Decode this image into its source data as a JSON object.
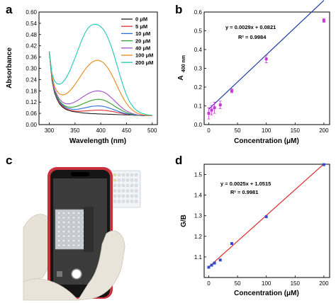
{
  "panels": {
    "a": "a",
    "b": "b",
    "c": "c",
    "d": "d"
  },
  "chart_data": [
    {
      "id": "a",
      "type": "line",
      "xlabel": "Wavelength (nm)",
      "ylabel": "Absorbance",
      "xlim": [
        280,
        510
      ],
      "ylim": [
        0,
        0.6
      ],
      "xticks": [
        "300",
        "350",
        "400",
        "450",
        "500"
      ],
      "yticks": [
        "0.00",
        "0.06",
        "0.12",
        "0.18",
        "0.24",
        "0.30",
        "0.36",
        "0.42",
        "0.48",
        "0.54",
        "0.60"
      ],
      "legend_position": "top-right",
      "x": [
        300,
        305,
        310,
        315,
        320,
        325,
        330,
        335,
        340,
        345,
        350,
        355,
        360,
        365,
        370,
        375,
        380,
        385,
        390,
        395,
        400,
        405,
        410,
        415,
        420,
        425,
        430,
        435,
        440,
        445,
        450,
        455,
        460,
        465,
        470,
        475,
        480,
        485,
        490,
        495,
        500
      ],
      "series": [
        {
          "name": "0 μM",
          "color": "#222222",
          "values": [
            0.39,
            0.24,
            0.17,
            0.135,
            0.11,
            0.095,
            0.085,
            0.078,
            0.074,
            0.07,
            0.068,
            0.066,
            0.064,
            0.062,
            0.061,
            0.06,
            0.059,
            0.058,
            0.058,
            0.057,
            0.057,
            0.056,
            0.056,
            0.055,
            0.055,
            0.054,
            0.054,
            0.053,
            0.053,
            0.052,
            0.052,
            0.051,
            0.051,
            0.05,
            0.05,
            0.049,
            0.049,
            0.048,
            0.048,
            0.047,
            0.047
          ]
        },
        {
          "name": "5 μM",
          "color": "#e03030",
          "values": [
            0.39,
            0.245,
            0.175,
            0.14,
            0.115,
            0.1,
            0.09,
            0.082,
            0.077,
            0.074,
            0.072,
            0.071,
            0.071,
            0.072,
            0.073,
            0.074,
            0.075,
            0.076,
            0.077,
            0.077,
            0.077,
            0.076,
            0.075,
            0.073,
            0.071,
            0.069,
            0.066,
            0.063,
            0.061,
            0.058,
            0.056,
            0.054,
            0.052,
            0.051,
            0.05,
            0.049,
            0.048,
            0.048,
            0.047,
            0.047,
            0.047
          ]
        },
        {
          "name": "10 μM",
          "color": "#2a6de0",
          "values": [
            0.39,
            0.248,
            0.18,
            0.145,
            0.12,
            0.105,
            0.095,
            0.088,
            0.084,
            0.082,
            0.081,
            0.082,
            0.084,
            0.087,
            0.09,
            0.093,
            0.096,
            0.098,
            0.099,
            0.1,
            0.099,
            0.097,
            0.094,
            0.09,
            0.085,
            0.08,
            0.075,
            0.07,
            0.065,
            0.061,
            0.058,
            0.055,
            0.053,
            0.051,
            0.05,
            0.049,
            0.048,
            0.048,
            0.047,
            0.047,
            0.047
          ]
        },
        {
          "name": "20 μM",
          "color": "#33a02c",
          "values": [
            0.39,
            0.25,
            0.185,
            0.15,
            0.125,
            0.11,
            0.1,
            0.095,
            0.093,
            0.093,
            0.095,
            0.099,
            0.104,
            0.11,
            0.116,
            0.122,
            0.127,
            0.131,
            0.134,
            0.135,
            0.134,
            0.131,
            0.126,
            0.119,
            0.111,
            0.102,
            0.093,
            0.085,
            0.077,
            0.07,
            0.064,
            0.059,
            0.056,
            0.053,
            0.051,
            0.05,
            0.049,
            0.048,
            0.047,
            0.047,
            0.047
          ]
        },
        {
          "name": "40 μM",
          "color": "#a14fc9",
          "values": [
            0.39,
            0.255,
            0.19,
            0.158,
            0.135,
            0.121,
            0.113,
            0.11,
            0.111,
            0.115,
            0.121,
            0.129,
            0.138,
            0.147,
            0.156,
            0.164,
            0.171,
            0.176,
            0.179,
            0.18,
            0.178,
            0.174,
            0.167,
            0.157,
            0.145,
            0.132,
            0.118,
            0.105,
            0.093,
            0.082,
            0.073,
            0.066,
            0.06,
            0.056,
            0.053,
            0.051,
            0.05,
            0.049,
            0.048,
            0.047,
            0.047
          ]
        },
        {
          "name": "100 μM",
          "color": "#e8891a",
          "values": [
            0.39,
            0.262,
            0.205,
            0.178,
            0.163,
            0.158,
            0.16,
            0.168,
            0.18,
            0.196,
            0.214,
            0.234,
            0.255,
            0.276,
            0.295,
            0.312,
            0.326,
            0.336,
            0.342,
            0.343,
            0.339,
            0.33,
            0.316,
            0.297,
            0.273,
            0.246,
            0.217,
            0.188,
            0.16,
            0.135,
            0.113,
            0.095,
            0.081,
            0.07,
            0.062,
            0.057,
            0.053,
            0.051,
            0.049,
            0.048,
            0.047
          ]
        },
        {
          "name": "200 μM",
          "color": "#1ec9b7",
          "values": [
            0.39,
            0.275,
            0.232,
            0.218,
            0.215,
            0.222,
            0.238,
            0.26,
            0.288,
            0.321,
            0.356,
            0.392,
            0.428,
            0.462,
            0.491,
            0.513,
            0.527,
            0.534,
            0.535,
            0.531,
            0.522,
            0.507,
            0.485,
            0.456,
            0.42,
            0.378,
            0.332,
            0.285,
            0.238,
            0.195,
            0.158,
            0.128,
            0.105,
            0.088,
            0.075,
            0.066,
            0.06,
            0.056,
            0.053,
            0.051,
            0.05
          ]
        }
      ]
    },
    {
      "id": "b",
      "type": "scatter",
      "xlabel": "Concentration (μM)",
      "ylabel_main": "A",
      "ylabel_sub": "400 nm",
      "xlim": [
        -8,
        210
      ],
      "ylim": [
        0,
        0.6
      ],
      "xticks": [
        "0",
        "50",
        "100",
        "150",
        "200"
      ],
      "yticks": [
        "0.0",
        "0.1",
        "0.2",
        "0.3",
        "0.4",
        "0.5",
        "0.6"
      ],
      "equation": "y = 0.0029x + 0.0821",
      "r2": "R² = 0.9984",
      "fit": {
        "slope": 0.0029,
        "intercept": 0.0821,
        "color": "#1f3fa6"
      },
      "points": [
        {
          "x": 0,
          "y": 0.06,
          "err": 0.03
        },
        {
          "x": 5,
          "y": 0.077,
          "err": 0.025
        },
        {
          "x": 10,
          "y": 0.09,
          "err": 0.03
        },
        {
          "x": 20,
          "y": 0.105,
          "err": 0.02
        },
        {
          "x": 40,
          "y": 0.18,
          "err": 0.01
        },
        {
          "x": 100,
          "y": 0.35,
          "err": 0.02
        },
        {
          "x": 200,
          "y": 0.555,
          "err": 0.01
        }
      ],
      "point_color": "#c63ad1"
    },
    {
      "id": "d",
      "type": "scatter",
      "xlabel": "Concentration (μM)",
      "ylabel": "G/B",
      "xlim": [
        -8,
        210
      ],
      "ylim": [
        1.0,
        1.55
      ],
      "xticks": [
        "0",
        "50",
        "100",
        "150",
        "200"
      ],
      "yticks": [
        "1.1",
        "1.2",
        "1.3",
        "1.4",
        "1.5"
      ],
      "equation": "y = 0.0025x + 1.0515",
      "r2": "R² = 0.9981",
      "fit": {
        "slope": 0.0025,
        "intercept": 1.0515,
        "color": "#e02a2a"
      },
      "points": [
        {
          "x": 0,
          "y": 1.05
        },
        {
          "x": 5,
          "y": 1.06
        },
        {
          "x": 10,
          "y": 1.07
        },
        {
          "x": 20,
          "y": 1.085
        },
        {
          "x": 40,
          "y": 1.165
        },
        {
          "x": 100,
          "y": 1.295
        },
        {
          "x": 200,
          "y": 1.548
        }
      ],
      "point_color": "#2c4fd6"
    }
  ],
  "photo": {
    "phone_frame_color": "#1a1a1a",
    "phone_accent_color": "#c8313b",
    "glove_color": "#e9e4d9",
    "plate_color": "#d9dde2"
  }
}
